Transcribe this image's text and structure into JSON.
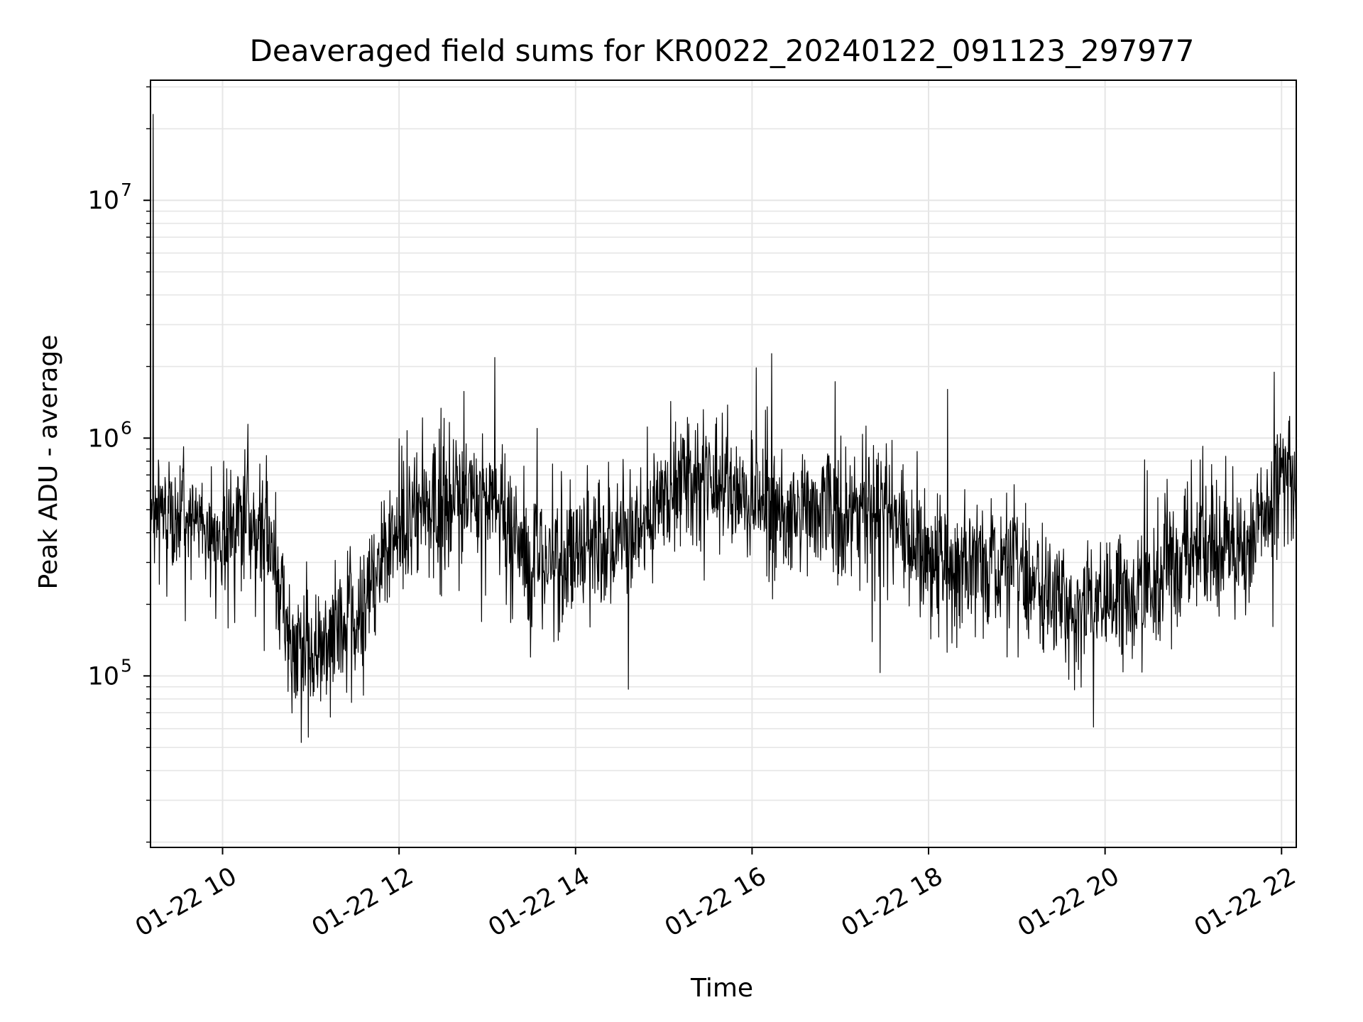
{
  "chart_data": {
    "type": "line",
    "title": "Deaveraged field sums for KR0022_20240122_091123_297977",
    "xlabel": "Time",
    "ylabel": "Peak ADU - average",
    "yscale": "log",
    "grid": true,
    "line_color": "#000000",
    "grid_color": "#e6e6e6",
    "xlim": [
      "2024-01-22T09:11",
      "2024-01-22T22:10"
    ],
    "ylim": [
      19000,
      32000000
    ],
    "x_ticks": [
      {
        "label": "01-22 10",
        "time": "2024-01-22T10:00"
      },
      {
        "label": "01-22 12",
        "time": "2024-01-22T12:00"
      },
      {
        "label": "01-22 14",
        "time": "2024-01-22T14:00"
      },
      {
        "label": "01-22 16",
        "time": "2024-01-22T16:00"
      },
      {
        "label": "01-22 18",
        "time": "2024-01-22T18:00"
      },
      {
        "label": "01-22 20",
        "time": "2024-01-22T20:00"
      },
      {
        "label": "01-22 22",
        "time": "2024-01-22T22:00"
      }
    ],
    "y_ticks": [
      {
        "base": "10",
        "exp": "5",
        "value": 100000
      },
      {
        "base": "10",
        "exp": "6",
        "value": 1000000
      },
      {
        "base": "10",
        "exp": "7",
        "value": 10000000
      }
    ],
    "series": [
      {
        "x": [
          "2024-01-22T09:11",
          "2024-01-22T09:30",
          "2024-01-22T10:00",
          "2024-01-22T10:30",
          "2024-01-22T10:45",
          "2024-01-22T11:00",
          "2024-01-22T11:30",
          "2024-01-22T12:00",
          "2024-01-22T12:30",
          "2024-01-22T13:00",
          "2024-01-22T13:30",
          "2024-01-22T14:00",
          "2024-01-22T14:30",
          "2024-01-22T15:00",
          "2024-01-22T15:30",
          "2024-01-22T16:00",
          "2024-01-22T16:30",
          "2024-01-22T17:00",
          "2024-01-22T17:30",
          "2024-01-22T18:00",
          "2024-01-22T18:30",
          "2024-01-22T19:00",
          "2024-01-22T19:30",
          "2024-01-22T20:00",
          "2024-01-22T20:30",
          "2024-01-22T21:00",
          "2024-01-22T21:30",
          "2024-01-22T22:00",
          "2024-01-22T22:10"
        ],
        "y": [
          450000,
          500000,
          400000,
          450000,
          150000,
          120000,
          170000,
          450000,
          550000,
          600000,
          300000,
          350000,
          350000,
          600000,
          700000,
          550000,
          500000,
          500000,
          550000,
          300000,
          280000,
          300000,
          200000,
          200000,
          220000,
          350000,
          320000,
          700000,
          700000
        ]
      }
    ]
  }
}
